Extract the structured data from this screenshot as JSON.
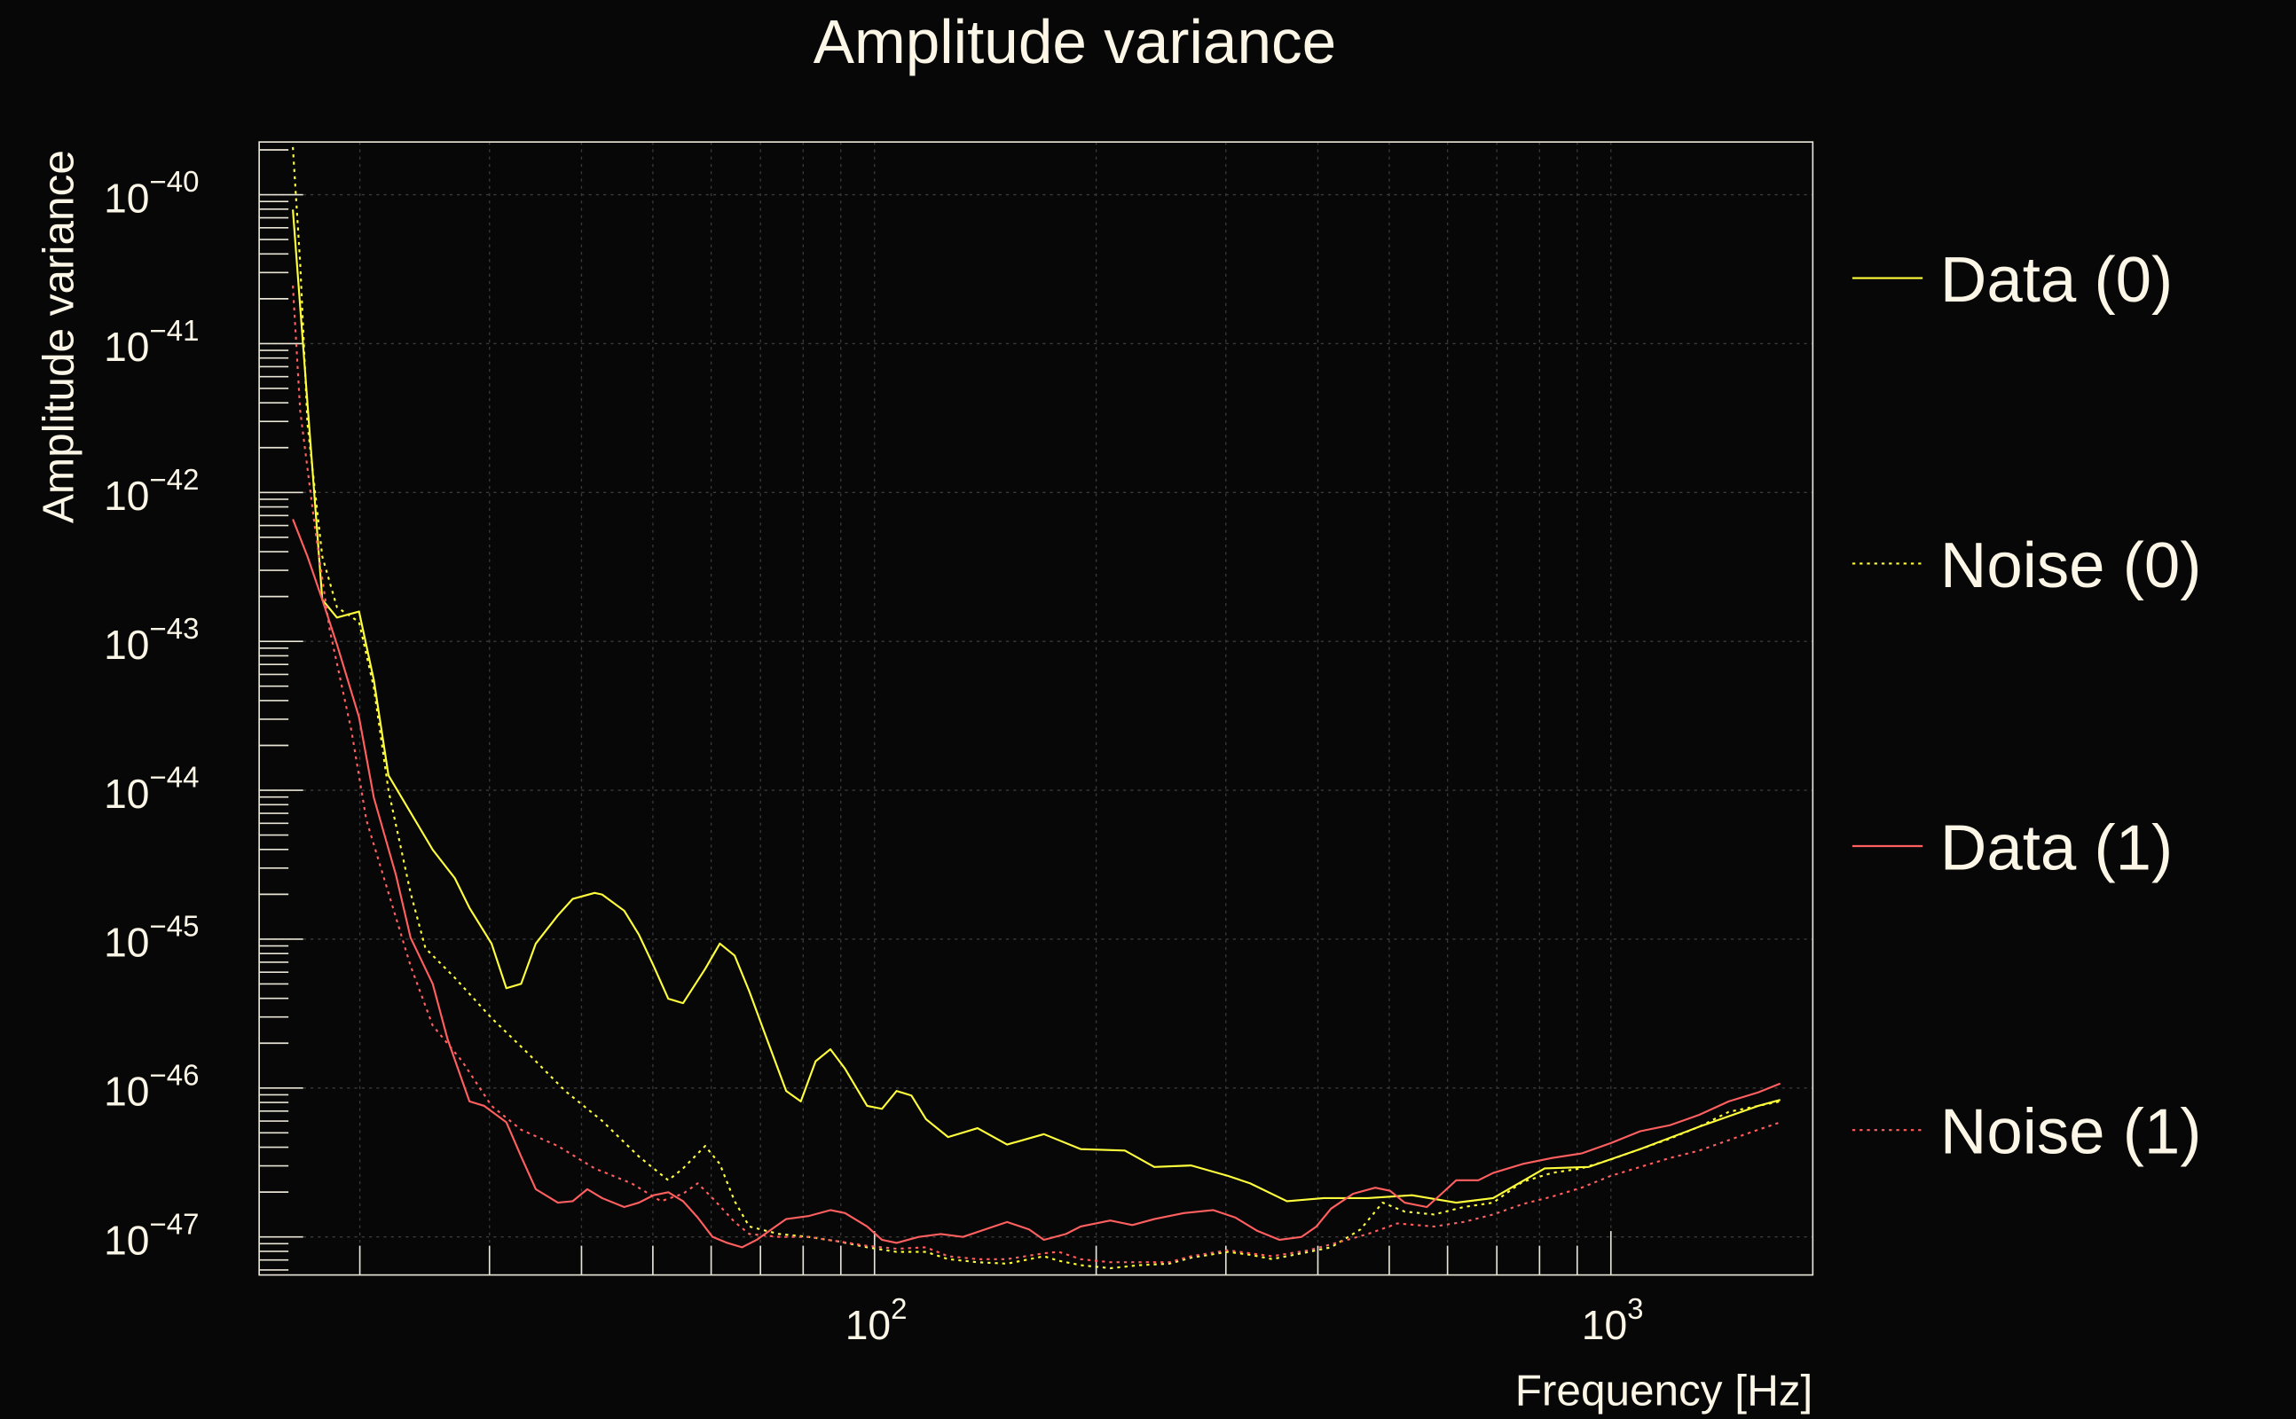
{
  "chart_data": {
    "type": "line",
    "title": "Amplitude variance",
    "xlabel": "Frequency [Hz]",
    "ylabel": "Amplitude variance",
    "xscale": "log",
    "yscale": "log",
    "xlim": [
      14.6,
      1880
    ],
    "ylim": [
      5.55e-48,
      2.26e-40
    ],
    "grid": true,
    "legend_position": "right",
    "point_format": "[log10(frequency Hz), log10(amplitude variance)]",
    "x_ticks": [
      {
        "value": 100,
        "base": "10",
        "exp": "2"
      },
      {
        "value": 1000,
        "base": "10",
        "exp": "3"
      }
    ],
    "y_ticks": [
      {
        "value": 1e-40,
        "base": "10",
        "exp": "−40"
      },
      {
        "value": 1e-41,
        "base": "10",
        "exp": "−41"
      },
      {
        "value": 1e-42,
        "base": "10",
        "exp": "−42"
      },
      {
        "value": 1e-43,
        "base": "10",
        "exp": "−43"
      },
      {
        "value": 1e-44,
        "base": "10",
        "exp": "−44"
      },
      {
        "value": 1e-45,
        "base": "10",
        "exp": "−45"
      },
      {
        "value": 1e-46,
        "base": "10",
        "exp": "−46"
      },
      {
        "value": 1e-47,
        "base": "10",
        "exp": "−47"
      }
    ],
    "series": [
      {
        "name": "Data (0)",
        "color": "#ffff3c",
        "style": "solid",
        "points": [
          [
            1.21,
            -40.1
          ],
          [
            1.25,
            -42.72
          ],
          [
            1.27,
            -42.84
          ],
          [
            1.3,
            -42.8
          ],
          [
            1.32,
            -43.26
          ],
          [
            1.34,
            -43.9
          ],
          [
            1.37,
            -44.15
          ],
          [
            1.4,
            -44.4
          ],
          [
            1.43,
            -44.59
          ],
          [
            1.45,
            -44.79
          ],
          [
            1.48,
            -45.03
          ],
          [
            1.5,
            -45.33
          ],
          [
            1.52,
            -45.3
          ],
          [
            1.54,
            -45.03
          ],
          [
            1.57,
            -44.84
          ],
          [
            1.59,
            -44.73
          ],
          [
            1.62,
            -44.69
          ],
          [
            1.63,
            -44.7
          ],
          [
            1.66,
            -44.81
          ],
          [
            1.68,
            -44.97
          ],
          [
            1.7,
            -45.18
          ],
          [
            1.72,
            -45.4
          ],
          [
            1.74,
            -45.43
          ],
          [
            1.77,
            -45.2
          ],
          [
            1.79,
            -45.03
          ],
          [
            1.81,
            -45.11
          ],
          [
            1.83,
            -45.35
          ],
          [
            1.85,
            -45.62
          ],
          [
            1.88,
            -46.02
          ],
          [
            1.9,
            -46.09
          ],
          [
            1.92,
            -45.82
          ],
          [
            1.94,
            -45.74
          ],
          [
            1.96,
            -45.87
          ],
          [
            1.99,
            -46.12
          ],
          [
            2.01,
            -46.14
          ],
          [
            2.03,
            -46.02
          ],
          [
            2.05,
            -46.05
          ],
          [
            2.07,
            -46.21
          ],
          [
            2.1,
            -46.33
          ],
          [
            2.14,
            -46.27
          ],
          [
            2.18,
            -46.38
          ],
          [
            2.23,
            -46.31
          ],
          [
            2.28,
            -46.41
          ],
          [
            2.34,
            -46.42
          ],
          [
            2.38,
            -46.53
          ],
          [
            2.43,
            -46.52
          ],
          [
            2.48,
            -46.59
          ],
          [
            2.51,
            -46.64
          ],
          [
            2.56,
            -46.76
          ],
          [
            2.61,
            -46.74
          ],
          [
            2.67,
            -46.74
          ],
          [
            2.73,
            -46.72
          ],
          [
            2.79,
            -46.77
          ],
          [
            2.84,
            -46.74
          ],
          [
            2.91,
            -46.54
          ],
          [
            2.97,
            -46.53
          ],
          [
            3.04,
            -46.41
          ],
          [
            3.12,
            -46.26
          ],
          [
            3.2,
            -46.12
          ],
          [
            3.23,
            -46.08
          ]
        ]
      },
      {
        "name": "Noise (0)",
        "color": "#ffff3c",
        "style": "dotted",
        "points": [
          [
            1.21,
            -39.68
          ],
          [
            1.22,
            -40.46
          ],
          [
            1.23,
            -41.54
          ],
          [
            1.25,
            -42.43
          ],
          [
            1.27,
            -42.77
          ],
          [
            1.3,
            -42.87
          ],
          [
            1.32,
            -43.31
          ],
          [
            1.34,
            -44.0
          ],
          [
            1.37,
            -44.69
          ],
          [
            1.39,
            -45.06
          ],
          [
            1.43,
            -45.26
          ],
          [
            1.48,
            -45.53
          ],
          [
            1.53,
            -45.77
          ],
          [
            1.58,
            -46.02
          ],
          [
            1.63,
            -46.22
          ],
          [
            1.68,
            -46.46
          ],
          [
            1.72,
            -46.62
          ],
          [
            1.74,
            -46.54
          ],
          [
            1.77,
            -46.39
          ],
          [
            1.79,
            -46.51
          ],
          [
            1.81,
            -46.76
          ],
          [
            1.83,
            -46.93
          ],
          [
            1.87,
            -46.98
          ],
          [
            1.91,
            -47.0
          ],
          [
            1.95,
            -47.03
          ],
          [
            1.99,
            -47.07
          ],
          [
            2.03,
            -47.1
          ],
          [
            2.07,
            -47.1
          ],
          [
            2.1,
            -47.15
          ],
          [
            2.14,
            -47.17
          ],
          [
            2.18,
            -47.18
          ],
          [
            2.23,
            -47.13
          ],
          [
            2.25,
            -47.16
          ],
          [
            2.28,
            -47.19
          ],
          [
            2.32,
            -47.21
          ],
          [
            2.36,
            -47.19
          ],
          [
            2.4,
            -47.18
          ],
          [
            2.43,
            -47.14
          ],
          [
            2.48,
            -47.1
          ],
          [
            2.51,
            -47.12
          ],
          [
            2.54,
            -47.15
          ],
          [
            2.59,
            -47.1
          ],
          [
            2.62,
            -47.07
          ],
          [
            2.66,
            -46.95
          ],
          [
            2.69,
            -46.77
          ],
          [
            2.72,
            -46.83
          ],
          [
            2.76,
            -46.85
          ],
          [
            2.8,
            -46.8
          ],
          [
            2.84,
            -46.77
          ],
          [
            2.88,
            -46.63
          ],
          [
            2.92,
            -46.57
          ],
          [
            2.96,
            -46.54
          ],
          [
            3.0,
            -46.48
          ],
          [
            3.04,
            -46.41
          ],
          [
            3.08,
            -46.34
          ],
          [
            3.12,
            -46.26
          ],
          [
            3.16,
            -46.16
          ],
          [
            3.2,
            -46.12
          ],
          [
            3.23,
            -46.09
          ]
        ]
      },
      {
        "name": "Data (1)",
        "color": "#ff5f5f",
        "style": "solid",
        "points": [
          [
            1.21,
            -42.18
          ],
          [
            1.23,
            -42.43
          ],
          [
            1.25,
            -42.72
          ],
          [
            1.27,
            -43.02
          ],
          [
            1.3,
            -43.51
          ],
          [
            1.32,
            -44.05
          ],
          [
            1.35,
            -44.57
          ],
          [
            1.37,
            -44.99
          ],
          [
            1.4,
            -45.3
          ],
          [
            1.42,
            -45.67
          ],
          [
            1.45,
            -46.09
          ],
          [
            1.47,
            -46.12
          ],
          [
            1.5,
            -46.23
          ],
          [
            1.52,
            -46.46
          ],
          [
            1.54,
            -46.68
          ],
          [
            1.57,
            -46.77
          ],
          [
            1.59,
            -46.76
          ],
          [
            1.61,
            -46.68
          ],
          [
            1.63,
            -46.74
          ],
          [
            1.66,
            -46.8
          ],
          [
            1.68,
            -46.77
          ],
          [
            1.7,
            -46.72
          ],
          [
            1.72,
            -46.7
          ],
          [
            1.74,
            -46.76
          ],
          [
            1.76,
            -46.87
          ],
          [
            1.78,
            -47.0
          ],
          [
            1.8,
            -47.04
          ],
          [
            1.82,
            -47.07
          ],
          [
            1.84,
            -47.02
          ],
          [
            1.86,
            -46.95
          ],
          [
            1.88,
            -46.88
          ],
          [
            1.91,
            -46.86
          ],
          [
            1.94,
            -46.82
          ],
          [
            1.96,
            -46.84
          ],
          [
            1.99,
            -46.93
          ],
          [
            2.01,
            -47.02
          ],
          [
            2.03,
            -47.04
          ],
          [
            2.06,
            -47.0
          ],
          [
            2.09,
            -46.98
          ],
          [
            2.12,
            -47.0
          ],
          [
            2.15,
            -46.95
          ],
          [
            2.18,
            -46.9
          ],
          [
            2.21,
            -46.95
          ],
          [
            2.23,
            -47.02
          ],
          [
            2.26,
            -46.98
          ],
          [
            2.28,
            -46.93
          ],
          [
            2.32,
            -46.89
          ],
          [
            2.35,
            -46.92
          ],
          [
            2.38,
            -46.88
          ],
          [
            2.42,
            -46.84
          ],
          [
            2.46,
            -46.82
          ],
          [
            2.49,
            -46.87
          ],
          [
            2.52,
            -46.96
          ],
          [
            2.55,
            -47.02
          ],
          [
            2.58,
            -47.0
          ],
          [
            2.6,
            -46.93
          ],
          [
            2.62,
            -46.81
          ],
          [
            2.65,
            -46.71
          ],
          [
            2.68,
            -46.67
          ],
          [
            2.7,
            -46.69
          ],
          [
            2.72,
            -46.77
          ],
          [
            2.75,
            -46.8
          ],
          [
            2.77,
            -46.71
          ],
          [
            2.79,
            -46.62
          ],
          [
            2.82,
            -46.62
          ],
          [
            2.84,
            -46.57
          ],
          [
            2.88,
            -46.51
          ],
          [
            2.92,
            -46.47
          ],
          [
            2.96,
            -46.44
          ],
          [
            3.0,
            -46.37
          ],
          [
            3.04,
            -46.29
          ],
          [
            3.08,
            -46.25
          ],
          [
            3.12,
            -46.18
          ],
          [
            3.16,
            -46.09
          ],
          [
            3.2,
            -46.03
          ],
          [
            3.23,
            -45.97
          ]
        ]
      },
      {
        "name": "Noise (1)",
        "color": "#ff5f5f",
        "style": "dotted",
        "points": [
          [
            1.21,
            -40.61
          ],
          [
            1.22,
            -41.45
          ],
          [
            1.24,
            -42.23
          ],
          [
            1.26,
            -42.92
          ],
          [
            1.29,
            -43.61
          ],
          [
            1.31,
            -44.2
          ],
          [
            1.34,
            -44.69
          ],
          [
            1.37,
            -45.18
          ],
          [
            1.4,
            -45.58
          ],
          [
            1.44,
            -45.82
          ],
          [
            1.48,
            -46.12
          ],
          [
            1.52,
            -46.28
          ],
          [
            1.57,
            -46.39
          ],
          [
            1.62,
            -46.54
          ],
          [
            1.67,
            -46.64
          ],
          [
            1.71,
            -46.76
          ],
          [
            1.74,
            -46.71
          ],
          [
            1.76,
            -46.64
          ],
          [
            1.78,
            -46.74
          ],
          [
            1.81,
            -46.9
          ],
          [
            1.83,
            -46.98
          ],
          [
            1.87,
            -47.0
          ],
          [
            1.91,
            -47.0
          ],
          [
            1.95,
            -47.03
          ],
          [
            1.99,
            -47.06
          ],
          [
            2.03,
            -47.08
          ],
          [
            2.07,
            -47.07
          ],
          [
            2.1,
            -47.13
          ],
          [
            2.14,
            -47.15
          ],
          [
            2.18,
            -47.15
          ],
          [
            2.23,
            -47.11
          ],
          [
            2.25,
            -47.1
          ],
          [
            2.28,
            -47.15
          ],
          [
            2.32,
            -47.17
          ],
          [
            2.36,
            -47.17
          ],
          [
            2.4,
            -47.17
          ],
          [
            2.43,
            -47.13
          ],
          [
            2.48,
            -47.09
          ],
          [
            2.51,
            -47.11
          ],
          [
            2.54,
            -47.13
          ],
          [
            2.59,
            -47.09
          ],
          [
            2.62,
            -47.05
          ],
          [
            2.67,
            -46.98
          ],
          [
            2.71,
            -46.91
          ],
          [
            2.76,
            -46.93
          ],
          [
            2.8,
            -46.9
          ],
          [
            2.84,
            -46.85
          ],
          [
            2.88,
            -46.78
          ],
          [
            2.92,
            -46.73
          ],
          [
            2.96,
            -46.67
          ],
          [
            3.0,
            -46.59
          ],
          [
            3.04,
            -46.53
          ],
          [
            3.08,
            -46.47
          ],
          [
            3.12,
            -46.42
          ],
          [
            3.16,
            -46.35
          ],
          [
            3.2,
            -46.28
          ],
          [
            3.23,
            -46.23
          ]
        ]
      }
    ]
  }
}
